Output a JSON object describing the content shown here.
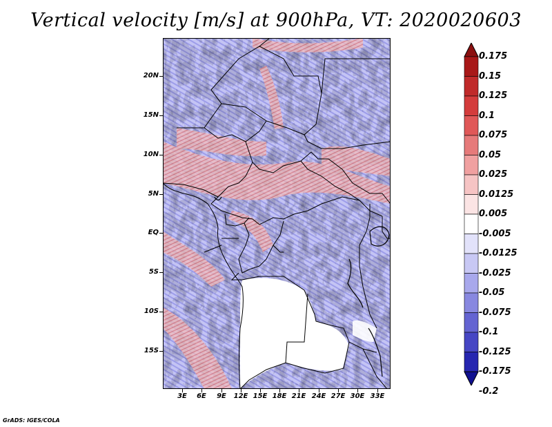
{
  "title": "Vertical velocity [m/s] at 900hPa, VT: 2020020603",
  "credit": "GrADS: IGES/COLA",
  "map": {
    "lon_labels": [
      "3E",
      "6E",
      "9E",
      "12E",
      "15E",
      "18E",
      "21E",
      "24E",
      "27E",
      "30E",
      "33E"
    ],
    "lat_labels": [
      "20N",
      "15N",
      "10N",
      "5N",
      "EQ",
      "5S",
      "10S",
      "15S"
    ],
    "colors": {
      "positive": "#c0392b",
      "negative": "#3a3ad0",
      "land_mask": "#ffffff",
      "border": "#000000"
    }
  },
  "colorbar": {
    "labels": [
      "0.175",
      "0.15",
      "0.125",
      "0.1",
      "0.075",
      "0.05",
      "0.025",
      "0.0125",
      "0.005",
      "-0.005",
      "-0.0125",
      "-0.025",
      "-0.05",
      "-0.075",
      "-0.1",
      "-0.125",
      "-0.175",
      "-0.2"
    ],
    "colors": [
      "#8b1010",
      "#a81818",
      "#c02a2a",
      "#d43c3c",
      "#e05858",
      "#e67a7a",
      "#f0a0a0",
      "#f6c4c4",
      "#fbe4e4",
      "#ffffff",
      "#e2e2fa",
      "#c8c8f4",
      "#a8a8ec",
      "#8888e0",
      "#6464d2",
      "#4646c4",
      "#2626b0",
      "#101090"
    ]
  }
}
